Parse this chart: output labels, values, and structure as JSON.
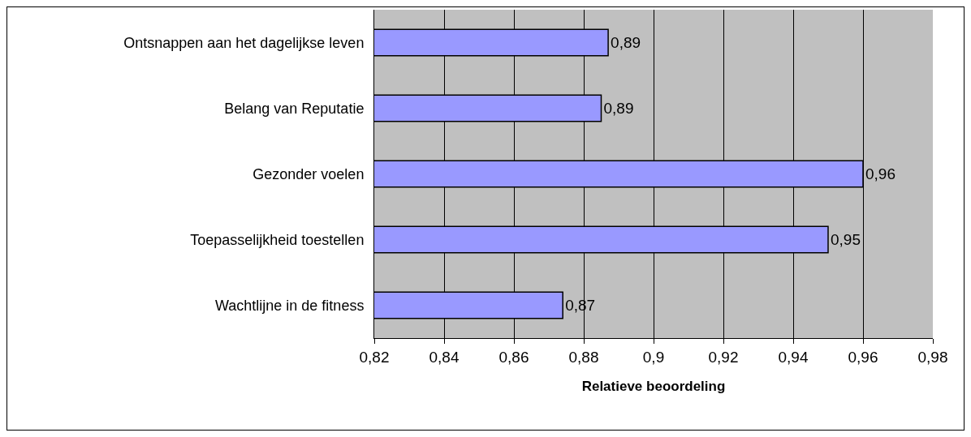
{
  "chart_data": {
    "type": "bar",
    "orientation": "horizontal",
    "xlabel": "Relatieve beoordeling",
    "categories": [
      "Ontsnappen aan het dagelijkse leven",
      "Belang van Reputatie",
      "Gezonder voelen",
      "Toepasselijkheid toestellen",
      "Wachtlijne in de fitness"
    ],
    "values": [
      0.887,
      0.885,
      0.96,
      0.95,
      0.874
    ],
    "value_labels": [
      "0,89",
      "0,89",
      "0,96",
      "0,95",
      "0,87"
    ],
    "color": "#9999ff",
    "xlim": [
      0.82,
      0.98
    ],
    "xticks": [
      {
        "value": 0.82,
        "label": "0,82"
      },
      {
        "value": 0.84,
        "label": "0,84"
      },
      {
        "value": 0.86,
        "label": "0,86"
      },
      {
        "value": 0.88,
        "label": "0,88"
      },
      {
        "value": 0.9,
        "label": "0,9"
      },
      {
        "value": 0.92,
        "label": "0,92"
      },
      {
        "value": 0.94,
        "label": "0,94"
      },
      {
        "value": 0.96,
        "label": "0,96"
      },
      {
        "value": 0.98,
        "label": "0,98"
      }
    ],
    "grid": "x"
  }
}
